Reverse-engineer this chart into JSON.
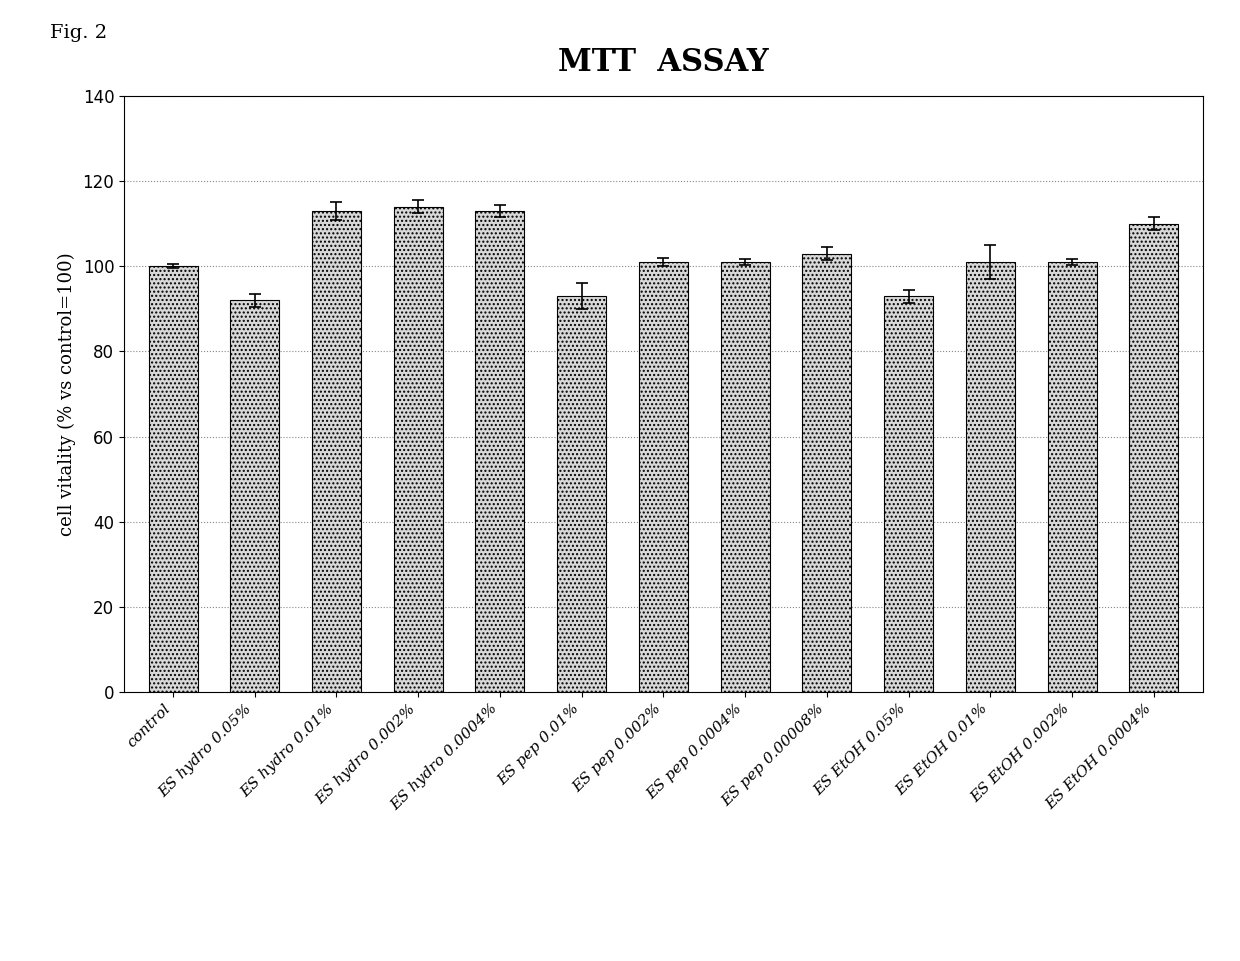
{
  "title": "MTT  ASSAY",
  "ylabel": "cell vitality (% vs control=100)",
  "categories": [
    "control",
    "ES hydro 0.05%",
    "ES hydro 0.01%",
    "ES hydro 0.002%",
    "ES hydro 0.0004%",
    "ES pep 0.01%",
    "ES pep 0.002%",
    "ES pep 0.0004%",
    "ES pep 0.00008%",
    "ES EtOH 0.05%",
    "ES EtOH 0.01%",
    "ES EtOH 0.002%",
    "ES EtOH 0.0004%"
  ],
  "values": [
    100,
    92,
    113,
    114,
    113,
    93,
    101,
    101,
    103,
    93,
    101,
    101,
    110
  ],
  "errors": [
    0.5,
    1.5,
    2.0,
    1.5,
    1.5,
    3.0,
    1.0,
    0.8,
    1.5,
    1.5,
    4.0,
    0.8,
    1.5
  ],
  "ylim": [
    0,
    140
  ],
  "yticks": [
    0,
    20,
    40,
    60,
    80,
    100,
    120,
    140
  ],
  "bar_color": "#d8d8d8",
  "bar_hatch": "....",
  "bar_edgecolor": "#000000",
  "error_color": "#000000",
  "grid_color": "#888888",
  "background_color": "#ffffff",
  "fig_label": "Fig. 2",
  "title_fontsize": 22,
  "ylabel_fontsize": 13,
  "tick_fontsize": 12,
  "label_fontsize": 11
}
